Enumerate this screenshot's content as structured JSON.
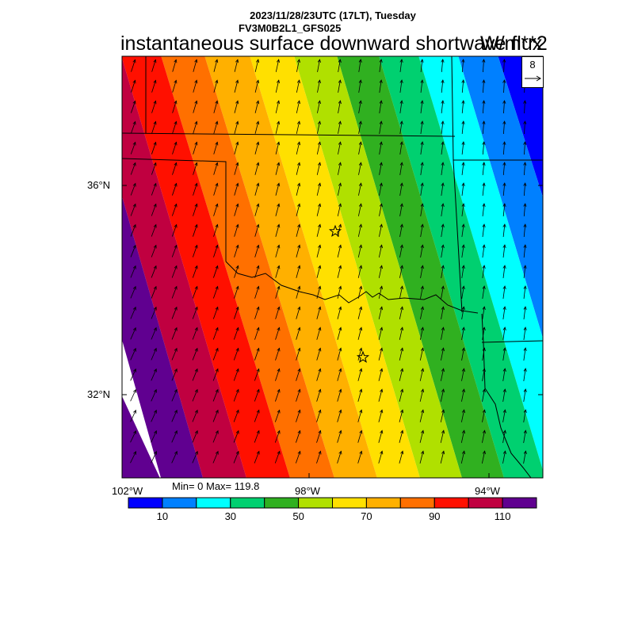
{
  "header": {
    "datetime": "2023/11/28/23UTC (17LT), Tuesday",
    "model": "FV3M0B2L1_GFS025",
    "variable": "instantaneous surface downward shortwave flux",
    "units": "W/m**2"
  },
  "axes": {
    "lat_labels": [
      "36°N",
      "32°N"
    ],
    "lon_labels": [
      "102°W",
      "98°W",
      "94°W"
    ]
  },
  "stats": {
    "text": "Min= 0 Max= 119.8"
  },
  "vector_reference": {
    "value": "8"
  },
  "colorbar": {
    "colors": [
      "#0000ff",
      "#0080ff",
      "#00ffff",
      "#00d070",
      "#30b020",
      "#b0e000",
      "#ffe000",
      "#ffb000",
      "#ff7000",
      "#ff1000",
      "#c00040",
      "#600090"
    ],
    "labels": [
      "10",
      "30",
      "50",
      "70",
      "90",
      "110"
    ]
  },
  "markers": [
    "star",
    "star"
  ],
  "wind_field": {
    "direction": "from south-southwest",
    "arrow_color": "#000000"
  }
}
